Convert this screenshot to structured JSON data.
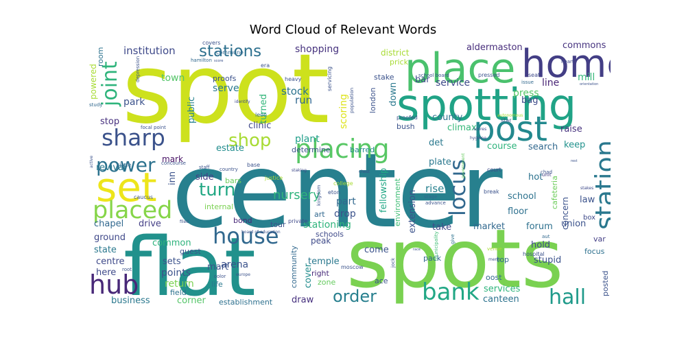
{
  "chart_data": {
    "type": "wordcloud",
    "title": "Word Cloud of Relevant Words",
    "words": [
      {
        "text": "center",
        "weight": 100,
        "color": "#27808e"
      },
      {
        "text": "spot",
        "weight": 90,
        "color": "#cde11d"
      },
      {
        "text": "flat",
        "weight": 75,
        "color": "#21918c"
      },
      {
        "text": "spots",
        "weight": 70,
        "color": "#7ad151"
      },
      {
        "text": "spotting",
        "weight": 45,
        "color": "#20a386"
      },
      {
        "text": "place",
        "weight": 40,
        "color": "#4ac16d"
      },
      {
        "text": "home",
        "weight": 40,
        "color": "#433e85"
      },
      {
        "text": "post",
        "weight": 38,
        "color": "#23898e"
      },
      {
        "text": "set",
        "weight": 36,
        "color": "#ede51b"
      },
      {
        "text": "placed",
        "weight": 28,
        "color": "#86d549"
      },
      {
        "text": "station",
        "weight": 30,
        "color": "#2a788e"
      },
      {
        "text": "placing",
        "weight": 30,
        "color": "#58c765"
      },
      {
        "text": "house",
        "weight": 26,
        "color": "#31688e"
      },
      {
        "text": "bank",
        "weight": 25,
        "color": "#22a785"
      },
      {
        "text": "hub",
        "weight": 26,
        "color": "#482878"
      },
      {
        "text": "hall",
        "weight": 24,
        "color": "#1f9a8a"
      },
      {
        "text": "sharp",
        "weight": 24,
        "color": "#3b528b"
      },
      {
        "text": "power",
        "weight": 22,
        "color": "#2c728e"
      },
      {
        "text": "shop",
        "weight": 22,
        "color": "#a8db34"
      },
      {
        "text": "joint",
        "weight": 22,
        "color": "#2fb47c"
      },
      {
        "text": "locus",
        "weight": 22,
        "color": "#31688e"
      },
      {
        "text": "turn",
        "weight": 20,
        "color": "#22a884"
      },
      {
        "text": "stations",
        "weight": 18,
        "color": "#2d708e"
      },
      {
        "text": "order",
        "weight": 18,
        "color": "#277f8e"
      },
      {
        "text": "nursery",
        "weight": 14,
        "color": "#2fb47c"
      },
      {
        "text": "institution",
        "weight": 12,
        "color": "#3e4989"
      },
      {
        "text": "shopping",
        "weight": 12,
        "color": "#46327e"
      },
      {
        "text": "aldermaston",
        "weight": 11,
        "color": "#472d7b"
      },
      {
        "text": "commons",
        "weight": 10,
        "color": "#46337f"
      },
      {
        "text": "service",
        "weight": 12,
        "color": "#3e4a89"
      },
      {
        "text": "press",
        "weight": 12,
        "color": "#56c667"
      },
      {
        "text": "line",
        "weight": 12,
        "color": "#482475"
      },
      {
        "text": "mill",
        "weight": 12,
        "color": "#35b779"
      },
      {
        "text": "town",
        "weight": 11,
        "color": "#54c568"
      },
      {
        "text": "park",
        "weight": 11,
        "color": "#3b528b"
      },
      {
        "text": "serve",
        "weight": 11,
        "color": "#2a788e"
      },
      {
        "text": "stock",
        "weight": 12,
        "color": "#2c728e"
      },
      {
        "text": "run",
        "weight": 12,
        "color": "#31688e"
      },
      {
        "text": "bar",
        "weight": 11,
        "color": "#3e4989"
      },
      {
        "text": "bag",
        "weight": 11,
        "color": "#3e4a89"
      },
      {
        "text": "public",
        "weight": 11,
        "color": "#26828e"
      },
      {
        "text": "turned",
        "weight": 11,
        "color": "#32b67a"
      },
      {
        "text": "scoring",
        "weight": 11,
        "color": "#dde318"
      },
      {
        "text": "down",
        "weight": 11,
        "color": "#2a788e"
      },
      {
        "text": "stop",
        "weight": 11,
        "color": "#46307e"
      },
      {
        "text": "clinic",
        "weight": 11,
        "color": "#3f4788"
      },
      {
        "text": "plant",
        "weight": 11,
        "color": "#1f9e89"
      },
      {
        "text": "county",
        "weight": 11,
        "color": "#2c728e"
      },
      {
        "text": "climax",
        "weight": 11,
        "color": "#35b779"
      },
      {
        "text": "det",
        "weight": 11,
        "color": "#2a788e"
      },
      {
        "text": "raise",
        "weight": 11,
        "color": "#46327e"
      },
      {
        "text": "keep",
        "weight": 11,
        "color": "#21918c"
      },
      {
        "text": "estate",
        "weight": 11,
        "color": "#228c8d"
      },
      {
        "text": "determine",
        "weight": 9,
        "color": "#3b528b"
      },
      {
        "text": "barred",
        "weight": 9,
        "color": "#238a8d"
      },
      {
        "text": "course",
        "weight": 11,
        "color": "#2eb37c"
      },
      {
        "text": "search",
        "weight": 11,
        "color": "#31688e"
      },
      {
        "text": "mark",
        "weight": 10,
        "color": "#471164"
      },
      {
        "text": "revival",
        "weight": 11,
        "color": "#2a788e"
      },
      {
        "text": "inn",
        "weight": 11,
        "color": "#3b528b"
      },
      {
        "text": "side",
        "weight": 11,
        "color": "#433e85"
      },
      {
        "text": "bars",
        "weight": 9,
        "color": "#6ccd5a"
      },
      {
        "text": "fellowship",
        "weight": 11,
        "color": "#22a785"
      },
      {
        "text": "environment",
        "weight": 9,
        "color": "#3dbc74"
      },
      {
        "text": "extension",
        "weight": 11,
        "color": "#3b528b"
      },
      {
        "text": "plate",
        "weight": 11,
        "color": "#2a788e"
      },
      {
        "text": "rise",
        "weight": 12,
        "color": "#27808e"
      },
      {
        "text": "hot",
        "weight": 11,
        "color": "#2c728e"
      },
      {
        "text": "cafeteria",
        "weight": 9,
        "color": "#6ccd5a"
      },
      {
        "text": "concern",
        "weight": 10,
        "color": "#3b528b"
      },
      {
        "text": "law",
        "weight": 11,
        "color": "#3b528b"
      },
      {
        "text": "school",
        "weight": 11,
        "color": "#2c728e"
      },
      {
        "text": "floor",
        "weight": 11,
        "color": "#2d708e"
      },
      {
        "text": "part",
        "weight": 11,
        "color": "#31688e"
      },
      {
        "text": "drop",
        "weight": 11,
        "color": "#3b528b"
      },
      {
        "text": "art",
        "weight": 9,
        "color": "#31688e"
      },
      {
        "text": "bond",
        "weight": 9,
        "color": "#482878"
      },
      {
        "text": "internal",
        "weight": 9,
        "color": "#7ad151"
      },
      {
        "text": "chapel",
        "weight": 11,
        "color": "#31688e"
      },
      {
        "text": "drive",
        "weight": 11,
        "color": "#433e85"
      },
      {
        "text": "ground",
        "weight": 11,
        "color": "#3f4889"
      },
      {
        "text": "common",
        "weight": 11,
        "color": "#2eb37c"
      },
      {
        "text": "state",
        "weight": 11,
        "color": "#2a788e"
      },
      {
        "text": "guest",
        "weight": 9,
        "color": "#3b528b"
      },
      {
        "text": "centre",
        "weight": 11,
        "color": "#3e4989"
      },
      {
        "text": "sets",
        "weight": 11,
        "color": "#3b528b"
      },
      {
        "text": "here",
        "weight": 11,
        "color": "#3e4989"
      },
      {
        "text": "points",
        "weight": 12,
        "color": "#3b528b"
      },
      {
        "text": "return",
        "weight": 12,
        "color": "#7ad151"
      },
      {
        "text": "business",
        "weight": 11,
        "color": "#2a788e"
      },
      {
        "text": "field",
        "weight": 9,
        "color": "#2c728e"
      },
      {
        "text": "corner",
        "weight": 11,
        "color": "#54c568"
      },
      {
        "text": "establishment",
        "weight": 9,
        "color": "#2d708e"
      },
      {
        "text": "draw",
        "weight": 11,
        "color": "#46307e"
      },
      {
        "text": "life",
        "weight": 9,
        "color": "#2a788e"
      },
      {
        "text": "mart",
        "weight": 11,
        "color": "#3b528b"
      },
      {
        "text": "arena",
        "weight": 12,
        "color": "#3b528b"
      },
      {
        "text": "stationing",
        "weight": 12,
        "color": "#2fb47c"
      },
      {
        "text": "tour",
        "weight": 9,
        "color": "#3b528b"
      },
      {
        "text": "schools",
        "weight": 9,
        "color": "#3e4989"
      },
      {
        "text": "peak",
        "weight": 10,
        "color": "#3e4a89"
      },
      {
        "text": "temple",
        "weight": 11,
        "color": "#2a788e"
      },
      {
        "text": "community",
        "weight": 9,
        "color": "#31688e"
      },
      {
        "text": "cover",
        "weight": 11,
        "color": "#228c8d"
      },
      {
        "text": "right",
        "weight": 9,
        "color": "#472a7a"
      },
      {
        "text": "zone",
        "weight": 9,
        "color": "#65cb5e"
      },
      {
        "text": "come",
        "weight": 11,
        "color": "#3b528b"
      },
      {
        "text": "ace",
        "weight": 9,
        "color": "#3b528b"
      },
      {
        "text": "pack",
        "weight": 9,
        "color": "#31688e"
      },
      {
        "text": "take",
        "weight": 11,
        "color": "#3e4989"
      },
      {
        "text": "market",
        "weight": 11,
        "color": "#31688e"
      },
      {
        "text": "forum",
        "weight": 11,
        "color": "#2d708e"
      },
      {
        "text": "union",
        "weight": 11,
        "color": "#3b528b"
      },
      {
        "text": "hold",
        "weight": 11,
        "color": "#3e4989"
      },
      {
        "text": "stupid",
        "weight": 11,
        "color": "#3b528b"
      },
      {
        "text": "top",
        "weight": 9,
        "color": "#31688e"
      },
      {
        "text": "oost",
        "weight": 9,
        "color": "#31688e"
      },
      {
        "text": "services",
        "weight": 11,
        "color": "#2fb47c"
      },
      {
        "text": "canteen",
        "weight": 11,
        "color": "#2c728e"
      },
      {
        "text": "posted",
        "weight": 9,
        "color": "#3b528b"
      },
      {
        "text": "focus",
        "weight": 9,
        "color": "#2d708e"
      },
      {
        "text": "var",
        "weight": 9,
        "color": "#433e85"
      },
      {
        "text": "box",
        "weight": 8,
        "color": "#3e4989"
      },
      {
        "text": "hospital",
        "weight": 7,
        "color": "#3b528b"
      },
      {
        "text": "aut",
        "weight": 6,
        "color": "#31688e"
      },
      {
        "text": "venue",
        "weight": 6,
        "color": "#a8db34"
      },
      {
        "text": "menu",
        "weight": 5,
        "color": "#3b528b"
      },
      {
        "text": "court",
        "weight": 6,
        "color": "#3e4989"
      },
      {
        "text": "break",
        "weight": 6,
        "color": "#3b528b"
      },
      {
        "text": "unit",
        "weight": 6,
        "color": "#433e85"
      },
      {
        "text": "chad",
        "weight": 6,
        "color": "#3b528b"
      },
      {
        "text": "stakes",
        "weight": 5,
        "color": "#3e4989"
      },
      {
        "text": "advance",
        "weight": 6,
        "color": "#3b528b"
      },
      {
        "text": "stage",
        "weight": 6,
        "color": "#31688e"
      },
      {
        "text": "municipality",
        "weight": 6,
        "color": "#3dbc74"
      },
      {
        "text": "give",
        "weight": 6,
        "color": "#2c728e"
      },
      {
        "text": "room",
        "weight": 9,
        "color": "#2c728e"
      },
      {
        "text": "powered",
        "weight": 9,
        "color": "#a8db34"
      },
      {
        "text": "depression",
        "weight": 6,
        "color": "#3b528b"
      },
      {
        "text": "hamilton",
        "weight": 6,
        "color": "#31688e"
      },
      {
        "text": "study",
        "weight": 6,
        "color": "#31688e"
      },
      {
        "text": "covers",
        "weight": 6,
        "color": "#3b528b"
      },
      {
        "text": "commune",
        "weight": 6,
        "color": "#31688e"
      },
      {
        "text": "proofs",
        "weight": 9,
        "color": "#3b528b"
      },
      {
        "text": "era",
        "weight": 6,
        "color": "#3b528b"
      },
      {
        "text": "heavy",
        "weight": 6,
        "color": "#3b528b"
      },
      {
        "text": "leon",
        "weight": 6,
        "color": "#31688e"
      },
      {
        "text": "identify",
        "weight": 5,
        "color": "#3e4989"
      },
      {
        "text": "servicing",
        "weight": 6,
        "color": "#3b528b"
      },
      {
        "text": "population",
        "weight": 6,
        "color": "#3b528b"
      },
      {
        "text": "district",
        "weight": 10,
        "color": "#a8db34"
      },
      {
        "text": "prick",
        "weight": 9,
        "color": "#a8db34"
      },
      {
        "text": "stake",
        "weight": 9,
        "color": "#3b528b"
      },
      {
        "text": "london",
        "weight": 9,
        "color": "#3b528b"
      },
      {
        "text": "school board",
        "weight": 6,
        "color": "#3b528b"
      },
      {
        "text": "pressed",
        "weight": 7,
        "color": "#3b528b"
      },
      {
        "text": "seat",
        "weight": 6,
        "color": "#3e4989"
      },
      {
        "text": "issue",
        "weight": 6,
        "color": "#31688e"
      },
      {
        "text": "heart",
        "weight": 6,
        "color": "#3e4989"
      },
      {
        "text": "orientation",
        "weight": 5,
        "color": "#3b528b"
      },
      {
        "text": "star",
        "weight": 6,
        "color": "#3b528b"
      },
      {
        "text": "autonomous",
        "weight": 5,
        "color": "#a8db34"
      },
      {
        "text": "proofed",
        "weight": 6,
        "color": "#3b528b"
      },
      {
        "text": "bush",
        "weight": 9,
        "color": "#3b528b"
      },
      {
        "text": "scores",
        "weight": 5,
        "color": "#3e4989"
      },
      {
        "text": "hygiene",
        "weight": 5,
        "color": "#3e4989"
      },
      {
        "text": "government",
        "weight": 5,
        "color": "#65cb5e"
      },
      {
        "text": "focal point",
        "weight": 6,
        "color": "#3b528b"
      },
      {
        "text": "active",
        "weight": 5,
        "color": "#3b528b"
      },
      {
        "text": "circle",
        "weight": 6,
        "color": "#31688e"
      },
      {
        "text": "concourse",
        "weight": 6,
        "color": "#3b528b"
      },
      {
        "text": "base",
        "weight": 6,
        "color": "#3b528b"
      },
      {
        "text": "staking",
        "weight": 5,
        "color": "#3e4989"
      },
      {
        "text": "staff",
        "weight": 6,
        "color": "#3b528b"
      },
      {
        "text": "country",
        "weight": 6,
        "color": "#3b528b"
      },
      {
        "text": "justice",
        "weight": 6,
        "color": "#a8db34"
      },
      {
        "text": "chest",
        "weight": 5,
        "color": "#3b528b"
      },
      {
        "text": "kingdom",
        "weight": 6,
        "color": "#3b528b"
      },
      {
        "text": "college",
        "weight": 6,
        "color": "#a8db34"
      },
      {
        "text": "eton",
        "weight": 6,
        "color": "#3b528b"
      },
      {
        "text": "private",
        "weight": 6,
        "color": "#3e4989"
      },
      {
        "text": "caucus",
        "weight": 6,
        "color": "#3b528b"
      },
      {
        "text": "filed",
        "weight": 5,
        "color": "#3b528b"
      },
      {
        "text": "board of education",
        "weight": 5,
        "color": "#3b528b"
      },
      {
        "text": "root",
        "weight": 6,
        "color": "#3b528b"
      },
      {
        "text": "color",
        "weight": 6,
        "color": "#3b528b"
      },
      {
        "text": "europe",
        "weight": 5,
        "color": "#3b528b"
      },
      {
        "text": "moscow",
        "weight": 6,
        "color": "#3b528b"
      },
      {
        "text": "jock",
        "weight": 5,
        "color": "#3b528b"
      },
      {
        "text": "rest",
        "weight": 4,
        "color": "#3b528b"
      },
      {
        "text": "race",
        "weight": 4,
        "color": "#3b528b"
      },
      {
        "text": "score",
        "weight": 4,
        "color": "#3b528b"
      }
    ]
  }
}
